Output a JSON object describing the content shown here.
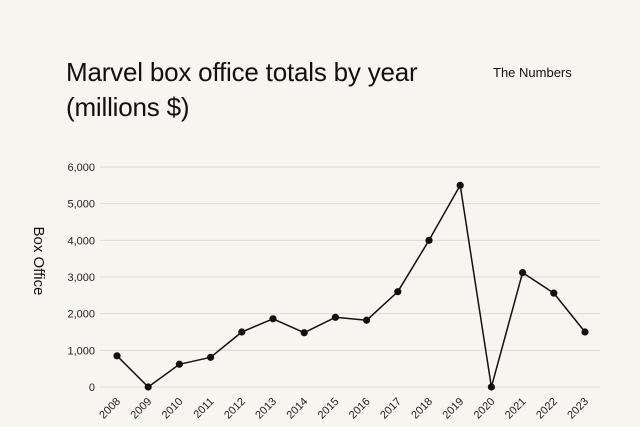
{
  "title_line1": "Marvel box office totals by year",
  "title_line2": "(millions $)",
  "source": "The Numbers",
  "chart_data": {
    "type": "line",
    "title": "Marvel box office totals by year (millions $)",
    "xlabel": "",
    "ylabel": "Box Office",
    "x": [
      "2008",
      "2009",
      "2010",
      "2011",
      "2012",
      "2013",
      "2014",
      "2015",
      "2016",
      "2017",
      "2018",
      "2019",
      "2020",
      "2021",
      "2022",
      "2023"
    ],
    "series": [
      {
        "values": [
          850,
          0,
          620,
          810,
          1500,
          1860,
          1480,
          1900,
          1820,
          2600,
          4000,
          5500,
          0,
          3120,
          2560,
          1500
        ]
      }
    ],
    "ylim": [
      0,
      6000
    ],
    "yticks": [
      "0",
      "1,000",
      "2,000",
      "3,000",
      "4,000",
      "5,000",
      "6,000"
    ],
    "grid": true,
    "colors": {
      "line": "#111111",
      "marker": "#111111",
      "grid": "#dcdad4",
      "background": "#f7f5f0"
    }
  }
}
